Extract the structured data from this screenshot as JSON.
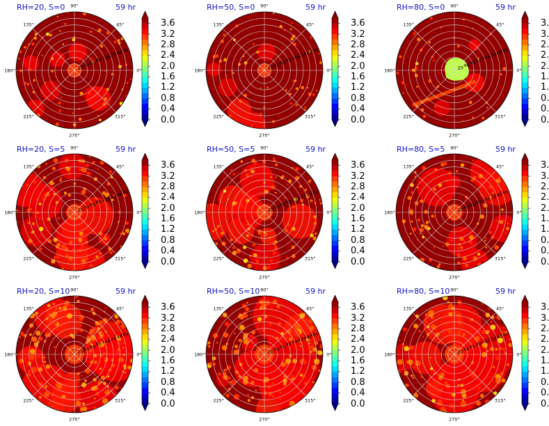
{
  "figure": {
    "panels": [
      {
        "left": "RH=20, S=0",
        "right": "59 hr",
        "rh": 20,
        "s": 0
      },
      {
        "left": "RH=50, S=0",
        "right": "59 hr",
        "rh": 50,
        "s": 0
      },
      {
        "left": "RH=80, S=0",
        "right": "59 hr",
        "rh": 80,
        "s": 0
      },
      {
        "left": "RH=20, S=5",
        "right": "59 hr",
        "rh": 20,
        "s": 5
      },
      {
        "left": "RH=50, S=5",
        "right": "59 hr",
        "rh": 50,
        "s": 5
      },
      {
        "left": "RH=80, S=5",
        "right": "59 hr",
        "rh": 80,
        "s": 5
      },
      {
        "left": "RH=20, S=10",
        "right": "59 hr",
        "rh": 20,
        "s": 10
      },
      {
        "left": "RH=50, S=10",
        "right": "59 hr",
        "rh": 50,
        "s": 10
      },
      {
        "left": "RH=80, S=10",
        "right": "59 hr",
        "rh": 80,
        "s": 10
      }
    ],
    "angle_labels": [
      "0°",
      "45°",
      "90°",
      "135°",
      "180°",
      "225°",
      "270°",
      "315°"
    ],
    "radial_labels": [
      "20",
      "40",
      "60",
      "80",
      "100",
      "120",
      "140",
      "160"
    ],
    "colorbar": {
      "min": 0.0,
      "max": 3.8,
      "step": 0.2,
      "extend": "both",
      "colormap": "jet",
      "tick_labels": [
        "0.0",
        "0.4",
        "0.8",
        "1.2",
        "1.6",
        "2.0",
        "2.4",
        "2.8",
        "3.2",
        "3.6"
      ]
    }
  },
  "chart_data": {
    "type": "heatmap",
    "projection": "polar",
    "layout": "3x3 grid",
    "rows_vary": "S",
    "columns_vary": "RH",
    "theta_ticks_deg": [
      0,
      45,
      90,
      135,
      180,
      225,
      270,
      315
    ],
    "r_ticks": [
      20,
      40,
      60,
      80,
      100,
      120,
      140,
      160
    ],
    "r_max": 180,
    "value_range": [
      0.0,
      3.8
    ],
    "colors": {
      "low": "#00007f",
      "mid": "#7fff7f",
      "high": "#7f0000",
      "title": "#1010c8"
    }
  }
}
